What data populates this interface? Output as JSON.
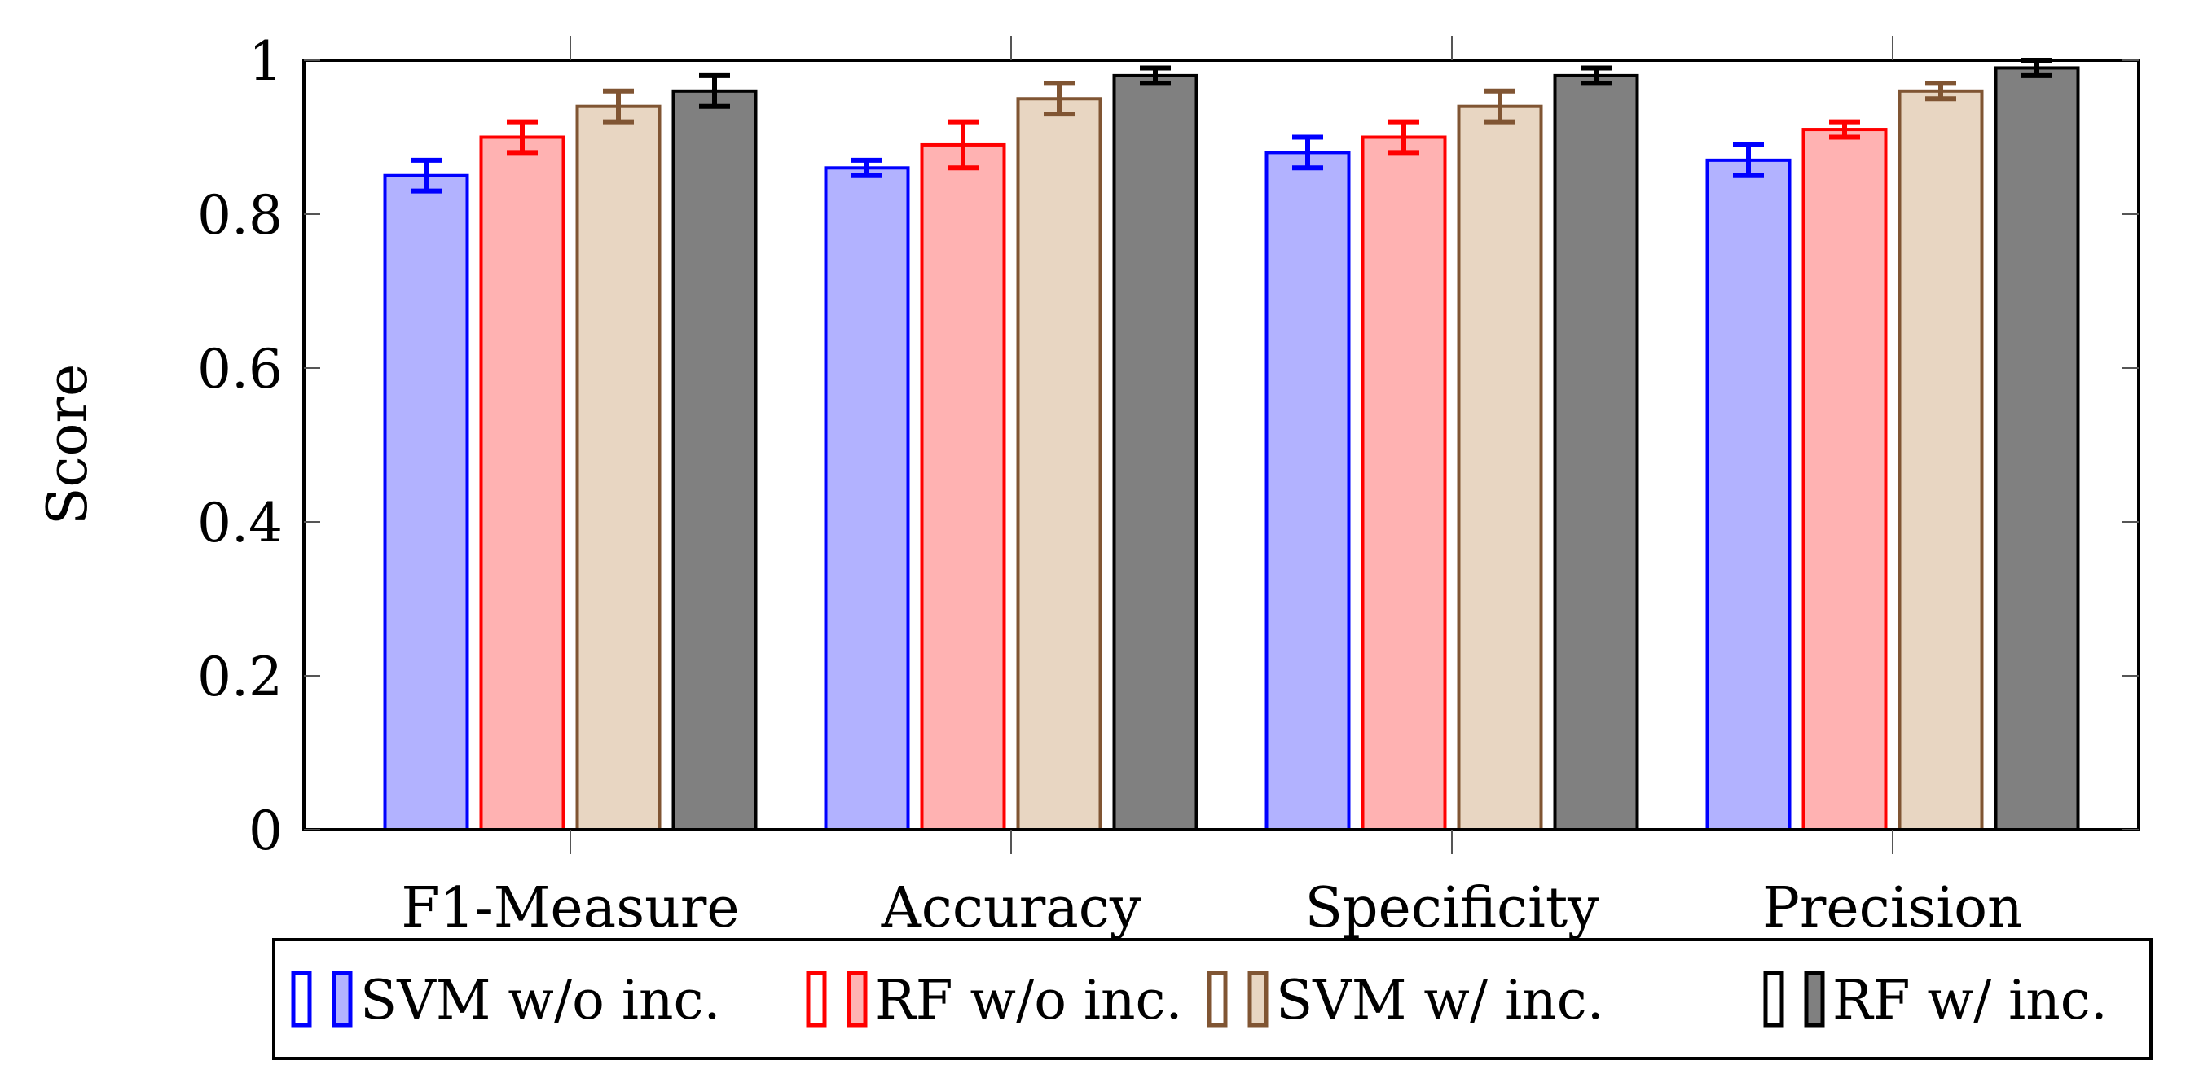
{
  "chart_data": {
    "type": "bar",
    "title": "",
    "xlabel": "",
    "ylabel": "Score",
    "ylim": [
      0,
      1
    ],
    "yticks": [
      0,
      0.2,
      0.4,
      0.6,
      0.8,
      1
    ],
    "ytick_labels": [
      "0",
      "0.2",
      "0.4",
      "0.6",
      "0.8",
      "1"
    ],
    "categories": [
      "F1-Measure",
      "Accuracy",
      "Specificity",
      "Precision"
    ],
    "series": [
      {
        "name": "SVM w/o inc.",
        "stroke": "#0000ff",
        "fill": "#b2b2ff",
        "values": [
          0.85,
          0.86,
          0.88,
          0.87
        ],
        "errors": [
          0.02,
          0.01,
          0.02,
          0.02
        ]
      },
      {
        "name": "RF w/o inc.",
        "stroke": "#ff0000",
        "fill": "#ffb2b2",
        "values": [
          0.9,
          0.89,
          0.9,
          0.91
        ],
        "errors": [
          0.02,
          0.03,
          0.02,
          0.01
        ]
      },
      {
        "name": "SVM w/ inc.",
        "stroke": "#805533",
        "fill": "#e8d6c2",
        "values": [
          0.94,
          0.95,
          0.94,
          0.96
        ],
        "errors": [
          0.02,
          0.02,
          0.02,
          0.01
        ]
      },
      {
        "name": "RF w/ inc.",
        "stroke": "#000000",
        "fill": "#808080",
        "values": [
          0.96,
          0.98,
          0.98,
          0.99
        ],
        "errors": [
          0.02,
          0.01,
          0.01,
          0.01
        ]
      }
    ],
    "grid": false,
    "legend_position": "bottom-center",
    "error_bars": true
  }
}
